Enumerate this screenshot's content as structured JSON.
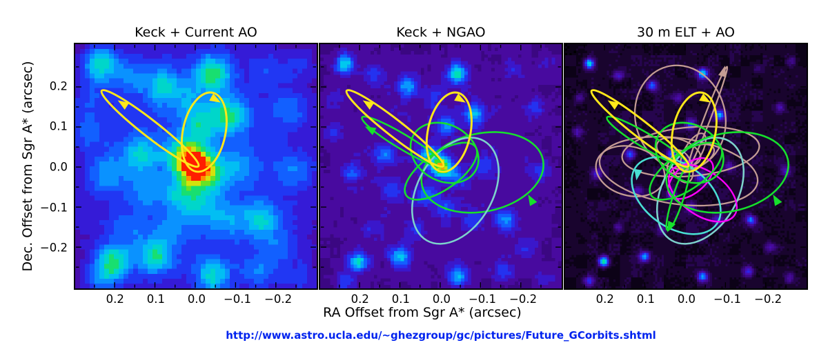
{
  "figure": {
    "y_axis_label": "Dec. Offset from Sgr A* (arcsec)",
    "x_axis_label": "RA Offset from Sgr A* (arcsec)",
    "footer_url": "http://www.astro.ucla.edu/~ghezgroup/gc/pictures/Future_GCorbits.shtml",
    "footer_url_color": "#0023ee",
    "background_color": "#ffffff"
  },
  "chart_data": {
    "type": "heatmap",
    "description": "Simulated images of stellar orbits around Sgr A* (Galactic Center) for three adaptive-optics scenarios; orbit ellipses overlaid on star-field heatmaps.",
    "x_axis": {
      "label": "RA Offset from Sgr A* (arcsec)",
      "ticks": [
        {
          "v": 0.2,
          "label": "0.2"
        },
        {
          "v": 0.1,
          "label": "0.1"
        },
        {
          "v": 0.0,
          "label": "0.0"
        },
        {
          "v": -0.1,
          "label": "−0.1"
        },
        {
          "v": -0.2,
          "label": "−0.2"
        }
      ],
      "minor_ticks": [
        0.25,
        0.15,
        0.05,
        -0.05,
        -0.15,
        -0.25
      ],
      "range": [
        0.3,
        -0.3
      ]
    },
    "y_axis": {
      "label": "Dec. Offset from Sgr A* (arcsec)",
      "ticks": [
        {
          "v": 0.2,
          "label": "0.2"
        },
        {
          "v": 0.1,
          "label": "0.1"
        },
        {
          "v": 0.0,
          "label": "0.0"
        },
        {
          "v": -0.1,
          "label": "−0.1"
        },
        {
          "v": -0.2,
          "label": "−0.2"
        }
      ],
      "minor_ticks": [
        0.25,
        0.15,
        0.05,
        -0.05,
        -0.15,
        -0.25
      ],
      "range": [
        -0.3,
        0.3
      ]
    },
    "scale": {
      "x0": 0.497,
      "kx": -1.669,
      "y0": 0.503,
      "ky": -1.64
    },
    "grid": false,
    "legend": false,
    "colormap": [
      [
        0.0,
        "#000000"
      ],
      [
        0.1,
        "#1b0433"
      ],
      [
        0.2,
        "#38077c"
      ],
      [
        0.3,
        "#4b0aa5"
      ],
      [
        0.4,
        "#2d21e8"
      ],
      [
        0.48,
        "#1450ff"
      ],
      [
        0.56,
        "#0a90ff"
      ],
      [
        0.64,
        "#00c8f0"
      ],
      [
        0.72,
        "#00e0b0"
      ],
      [
        0.78,
        "#30dd30"
      ],
      [
        0.85,
        "#a8e818"
      ],
      [
        0.9,
        "#ffd900"
      ],
      [
        0.95,
        "#ff7800"
      ],
      [
        1.0,
        "#ff1e00"
      ]
    ],
    "orbit_colors": {
      "yellow": "#ffe81a",
      "green": "#16e02c",
      "cyan": "#49dfd3",
      "cyan_soft": "#7dd2cc",
      "magenta": "#ff00ff",
      "tan": "#c49c94"
    },
    "stars": [
      [
        0.1,
        0.08,
        0.4
      ],
      [
        0.22,
        0.13,
        0.18
      ],
      [
        0.36,
        0.17,
        0.3
      ],
      [
        0.57,
        0.12,
        0.42
      ],
      [
        0.47,
        0.22,
        0.15
      ],
      [
        0.64,
        0.29,
        0.34
      ],
      [
        0.52,
        0.33,
        0.26
      ],
      [
        0.89,
        0.26,
        0.16
      ],
      [
        0.05,
        0.36,
        0.15
      ],
      [
        0.27,
        0.45,
        0.28
      ],
      [
        0.13,
        0.53,
        0.2
      ],
      [
        0.445,
        0.45,
        0.3
      ],
      [
        0.5,
        0.5,
        0.62
      ],
      [
        0.56,
        0.545,
        0.22
      ],
      [
        0.68,
        0.5,
        0.15
      ],
      [
        0.91,
        0.52,
        0.16
      ],
      [
        0.44,
        0.615,
        0.22
      ],
      [
        0.3,
        0.6,
        0.14
      ],
      [
        0.52,
        0.67,
        0.16
      ],
      [
        0.63,
        0.72,
        0.18
      ],
      [
        0.77,
        0.72,
        0.3
      ],
      [
        0.4,
        0.76,
        0.14
      ],
      [
        0.85,
        0.83,
        0.14
      ],
      [
        0.16,
        0.89,
        0.42
      ],
      [
        0.33,
        0.87,
        0.36
      ],
      [
        0.1,
        0.97,
        0.22
      ],
      [
        0.57,
        0.95,
        0.34
      ],
      [
        0.76,
        0.93,
        0.2
      ],
      [
        0.93,
        0.96,
        0.14
      ],
      [
        0.22,
        0.75,
        0.12
      ],
      [
        0.06,
        0.22,
        0.12
      ],
      [
        0.8,
        0.1,
        0.1
      ],
      [
        0.94,
        0.07,
        0.1
      ]
    ],
    "orbit_catalog": {
      "yellow_thin": {
        "cx": 0.31,
        "cy": 0.345,
        "rx": 0.254,
        "ry": 0.034,
        "rot": 38,
        "color": "yellow",
        "w": 3
      },
      "yellow_round": {
        "cx": 0.534,
        "cy": 0.36,
        "rx": 0.088,
        "ry": 0.165,
        "rot": 12,
        "color": "yellow",
        "w": 3
      },
      "green_thin": {
        "cx": 0.3425,
        "cy": 0.4,
        "rx": 0.197,
        "ry": 0.03,
        "rot": 31,
        "color": "green",
        "w": 2.6
      },
      "green_mid": {
        "cx": 0.515,
        "cy": 0.445,
        "rx": 0.148,
        "ry": 0.115,
        "rot": 30,
        "color": "green",
        "w": 2.6
      },
      "green_mid2": {
        "cx": 0.5,
        "cy": 0.52,
        "rx": 0.175,
        "ry": 0.075,
        "rot": -35,
        "color": "green",
        "w": 2.6
      },
      "green_big": {
        "cx": 0.672,
        "cy": 0.525,
        "rx": 0.256,
        "ry": 0.16,
        "rot": -12,
        "color": "green",
        "w": 2.6
      },
      "green_thin2": {
        "cx": 0.4675,
        "cy": 0.63,
        "rx": 0.14,
        "ry": 0.022,
        "rot": 108,
        "color": "green",
        "w": 2.6
      },
      "cyan_soft": {
        "cx": 0.56,
        "cy": 0.6,
        "rx": 0.155,
        "ry": 0.235,
        "rot": 30,
        "color": "cyan_soft",
        "w": 2.6
      },
      "cyan_bright": {
        "cx": 0.46,
        "cy": 0.62,
        "rx": 0.205,
        "ry": 0.13,
        "rot": 35,
        "color": "cyan",
        "w": 2.6
      },
      "magenta1": {
        "cx": 0.57,
        "cy": 0.61,
        "rx": 0.16,
        "ry": 0.09,
        "rot": 35,
        "color": "magenta",
        "w": 2.4
      },
      "magenta2": {
        "cx": 0.52,
        "cy": 0.55,
        "rx": 0.11,
        "ry": 0.06,
        "rot": -40,
        "color": "magenta",
        "w": 2.4
      },
      "tan_tall": {
        "cx": 0.477,
        "cy": 0.3,
        "rx": 0.186,
        "ry": 0.215,
        "rot": -15,
        "color": "tan",
        "w": 2.3
      },
      "tan_wide": {
        "cx": 0.47,
        "cy": 0.52,
        "rx": 0.33,
        "ry": 0.135,
        "rot": 8,
        "color": "tan",
        "w": 2.3
      },
      "tan_wide2": {
        "cx": 0.52,
        "cy": 0.44,
        "rx": 0.285,
        "ry": 0.1,
        "rot": -5,
        "color": "tan",
        "w": 2.3
      },
      "tan_left": {
        "cx": 0.27,
        "cy": 0.52,
        "rx": 0.145,
        "ry": 0.1,
        "rot": 15,
        "color": "tan",
        "w": 2.3
      },
      "tan_line": {
        "cx": 0.59,
        "cy": 0.3,
        "rx": 0.225,
        "ry": 0.013,
        "rot": -69,
        "color": "tan",
        "w": 2.3
      },
      "tan_loop1": {
        "cx": 0.47,
        "cy": 0.44,
        "rx": 0.095,
        "ry": 0.05,
        "rot": 20,
        "color": "tan",
        "w": 2.2
      },
      "tan_loop2": {
        "cx": 0.52,
        "cy": 0.47,
        "rx": 0.105,
        "ry": 0.045,
        "rot": -25,
        "color": "tan",
        "w": 2.2
      },
      "tan_loop3": {
        "cx": 0.485,
        "cy": 0.5,
        "rx": 0.07,
        "ry": 0.04,
        "rot": 70,
        "color": "tan",
        "w": 2.2
      },
      "tan_loop4": {
        "cx": 0.53,
        "cy": 0.44,
        "rx": 0.085,
        "ry": 0.035,
        "rot": -60,
        "color": "tan",
        "w": 2.2
      }
    },
    "panels": [
      {
        "title": "Keck + Current AO",
        "cells": 50,
        "base": 0.46,
        "vignette": 0.42,
        "noise": 0.03,
        "noise_scale": 2,
        "psf": 0.052,
        "gain": 0.9,
        "quant": 16,
        "orbits": [
          "yellow_thin",
          "yellow_round"
        ],
        "arrows": [
          {
            "x": 0.2,
            "y": 0.245,
            "angle": 213,
            "color": "yellow"
          },
          {
            "x": 0.578,
            "y": 0.225,
            "angle": 30,
            "color": "yellow"
          }
        ]
      },
      {
        "title": "Keck + NGAO",
        "cells": 72,
        "base": 0.3,
        "vignette": 0.25,
        "noise": 0.055,
        "noise_scale": 3,
        "psf": 0.03,
        "gain": 1.0,
        "quant": 14,
        "orbits": [
          "green_big",
          "cyan_soft",
          "green_mid",
          "green_mid2",
          "green_thin",
          "yellow_thin",
          "yellow_round"
        ],
        "arrows": [
          {
            "x": 0.2,
            "y": 0.245,
            "angle": 213,
            "color": "yellow"
          },
          {
            "x": 0.578,
            "y": 0.225,
            "angle": 30,
            "color": "yellow"
          },
          {
            "x": 0.875,
            "y": 0.64,
            "angle": 240,
            "color": "green"
          },
          {
            "x": 0.21,
            "y": 0.35,
            "angle": 208,
            "color": "green"
          }
        ]
      },
      {
        "title": "30 m ELT + AO",
        "cells": 110,
        "base": 0.1,
        "vignette": 0.35,
        "noise": 0.07,
        "noise_scale": 5,
        "psf": 0.015,
        "gain": 1.5,
        "quant": 22,
        "orbits": [
          "tan_wide",
          "tan_wide2",
          "tan_tall",
          "tan_left",
          "tan_line",
          "tan_loop1",
          "tan_loop2",
          "tan_loop3",
          "tan_loop4",
          "cyan_soft",
          "cyan_bright",
          "magenta1",
          "magenta2",
          "green_big",
          "green_mid",
          "green_mid2",
          "green_thin",
          "green_thin2",
          "yellow_thin",
          "yellow_round"
        ],
        "arrows": [
          {
            "x": 0.2,
            "y": 0.245,
            "angle": 213,
            "color": "yellow"
          },
          {
            "x": 0.578,
            "y": 0.225,
            "angle": 30,
            "color": "yellow"
          },
          {
            "x": 0.875,
            "y": 0.64,
            "angle": 240,
            "color": "green"
          },
          {
            "x": 0.655,
            "y": 0.115,
            "angle": -75,
            "color": "tan"
          },
          {
            "x": 0.435,
            "y": 0.745,
            "angle": 115,
            "color": "green"
          },
          {
            "x": 0.3,
            "y": 0.53,
            "angle": 100,
            "color": "cyan"
          }
        ]
      }
    ]
  }
}
